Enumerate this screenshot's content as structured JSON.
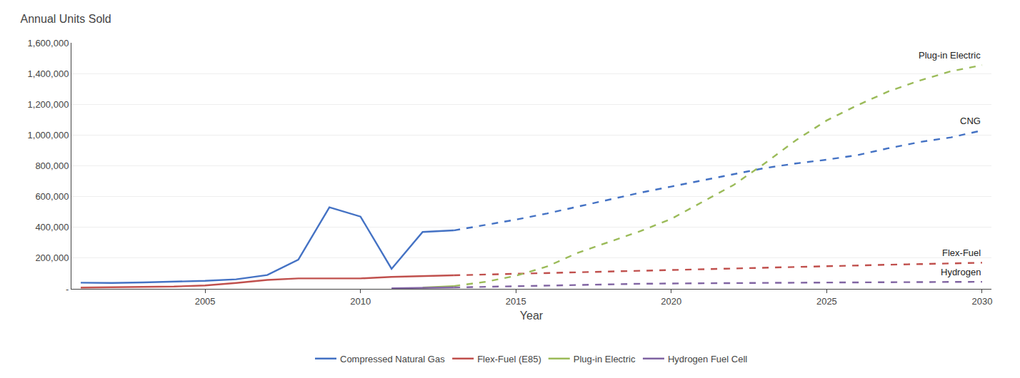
{
  "chart_data": {
    "type": "line",
    "title": "Annual Units Sold",
    "xlabel": "Year",
    "x": [
      2001,
      2002,
      2003,
      2004,
      2005,
      2006,
      2007,
      2008,
      2009,
      2010,
      2011,
      2012,
      2013,
      2014,
      2015,
      2016,
      2017,
      2018,
      2019,
      2020,
      2021,
      2022,
      2023,
      2024,
      2025,
      2026,
      2027,
      2028,
      2029,
      2030
    ],
    "series": [
      {
        "name": "Compressed Natural Gas",
        "color": "#4472C4",
        "line_style": "solid",
        "values": [
          40000,
          38000,
          42000,
          48000,
          52000,
          62000,
          90000,
          190000,
          530000,
          470000,
          130000,
          370000,
          380000,
          null,
          null,
          null,
          null,
          null,
          null,
          null,
          null,
          null,
          null,
          null,
          null,
          null,
          null,
          null,
          null,
          null
        ]
      },
      {
        "name": "Flex-Fuel (E85)",
        "color": "#C0504D",
        "line_style": "solid",
        "values": [
          8000,
          10000,
          12000,
          15000,
          22000,
          38000,
          58000,
          68000,
          68000,
          68000,
          78000,
          83000,
          88000,
          null,
          null,
          null,
          null,
          null,
          null,
          null,
          null,
          null,
          null,
          null,
          null,
          null,
          null,
          null,
          null,
          null
        ]
      },
      {
        "name": "Plug-in Electric",
        "color": "#9BBB59",
        "line_style": "solid",
        "values": [
          null,
          null,
          null,
          null,
          null,
          null,
          null,
          null,
          null,
          null,
          null,
          8000,
          18000,
          null,
          null,
          null,
          null,
          null,
          null,
          null,
          null,
          null,
          null,
          null,
          null,
          null,
          null,
          null,
          null,
          null
        ]
      },
      {
        "name": "Hydrogen Fuel Cell",
        "color": "#8064A2",
        "line_style": "solid",
        "values": [
          null,
          null,
          null,
          null,
          null,
          null,
          null,
          null,
          null,
          null,
          4000,
          7000,
          9000,
          null,
          null,
          null,
          null,
          null,
          null,
          null,
          null,
          null,
          null,
          null,
          null,
          null,
          null,
          null,
          null,
          null
        ]
      },
      {
        "name": "Compressed Natural Gas",
        "color": "#4472C4",
        "line_style": "dashed",
        "values": [
          null,
          null,
          null,
          null,
          null,
          null,
          null,
          null,
          null,
          null,
          null,
          null,
          380000,
          415000,
          450000,
          490000,
          535000,
          580000,
          625000,
          665000,
          705000,
          745000,
          785000,
          815000,
          840000,
          870000,
          915000,
          955000,
          985000,
          1030000
        ]
      },
      {
        "name": "Flex-Fuel (E85)",
        "color": "#C0504D",
        "line_style": "dashed",
        "values": [
          null,
          null,
          null,
          null,
          null,
          null,
          null,
          null,
          null,
          null,
          null,
          null,
          88000,
          93000,
          98000,
          103000,
          108000,
          113000,
          118000,
          123000,
          128000,
          133000,
          138000,
          145000,
          150000,
          153000,
          157000,
          161000,
          165000,
          170000
        ]
      },
      {
        "name": "Plug-in Electric",
        "color": "#9BBB59",
        "line_style": "dashed",
        "values": [
          null,
          null,
          null,
          null,
          null,
          null,
          null,
          null,
          null,
          null,
          null,
          null,
          18000,
          45000,
          85000,
          145000,
          235000,
          305000,
          375000,
          455000,
          565000,
          675000,
          815000,
          965000,
          1095000,
          1195000,
          1285000,
          1355000,
          1415000,
          1455000
        ]
      },
      {
        "name": "Hydrogen Fuel Cell",
        "color": "#8064A2",
        "line_style": "dashed",
        "values": [
          null,
          null,
          null,
          null,
          null,
          null,
          null,
          null,
          null,
          null,
          null,
          null,
          9000,
          13000,
          18000,
          23000,
          28000,
          31000,
          33000,
          35000,
          37000,
          38000,
          39000,
          40000,
          41000,
          42000,
          43000,
          44000,
          45000,
          46000
        ]
      }
    ],
    "annotations": [
      {
        "text": "Plug-in Electric",
        "x": 2030,
        "y": 1455000
      },
      {
        "text": "CNG",
        "x": 2030,
        "y": 1030000
      },
      {
        "text": "Flex-Fuel",
        "x": 2030,
        "y": 170000
      },
      {
        "text": "Hydrogen",
        "x": 2030,
        "y": 46000
      }
    ],
    "xlim": [
      2000.7,
      2030.3
    ],
    "xticks": [
      2005,
      2010,
      2015,
      2020,
      2025,
      2030
    ],
    "ylim": [
      0,
      1600000
    ],
    "yticks": [
      {
        "value": 0,
        "label": "-"
      },
      {
        "value": 200000,
        "label": "200,000"
      },
      {
        "value": 400000,
        "label": "400,000"
      },
      {
        "value": 600000,
        "label": "600,000"
      },
      {
        "value": 800000,
        "label": "800,000"
      },
      {
        "value": 1000000,
        "label": "1,000,000"
      },
      {
        "value": 1200000,
        "label": "1,200,000"
      },
      {
        "value": 1400000,
        "label": "1,400,000"
      },
      {
        "value": 1600000,
        "label": "1,600,000"
      }
    ],
    "grid": "y",
    "legend": "bottom"
  }
}
